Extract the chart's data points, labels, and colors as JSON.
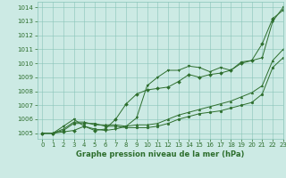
{
  "title": "Graphe pression niveau de la mer (hPa)",
  "background_color": "#cceae4",
  "grid_color": "#88c4b8",
  "line_color": "#2d6e2d",
  "xlim": [
    -0.5,
    23
  ],
  "ylim": [
    1004.6,
    1014.4
  ],
  "yticks": [
    1005,
    1006,
    1007,
    1008,
    1009,
    1010,
    1011,
    1012,
    1013,
    1014
  ],
  "xticks": [
    0,
    1,
    2,
    3,
    4,
    5,
    6,
    7,
    8,
    9,
    10,
    11,
    12,
    13,
    14,
    15,
    16,
    17,
    18,
    19,
    20,
    21,
    22,
    23
  ],
  "series": [
    [
      1005.0,
      1005.0,
      1005.1,
      1005.2,
      1005.5,
      1005.2,
      1005.3,
      1006.0,
      1007.1,
      1007.8,
      1008.1,
      1008.2,
      1008.3,
      1008.7,
      1009.2,
      1009.0,
      1009.2,
      1009.3,
      1009.5,
      1010.0,
      1010.2,
      1011.4,
      1013.2,
      1013.8
    ],
    [
      1005.0,
      1005.0,
      1005.2,
      1005.7,
      1005.7,
      1005.7,
      1005.5,
      1005.5,
      1005.4,
      1005.4,
      1005.4,
      1005.5,
      1005.7,
      1006.0,
      1006.2,
      1006.4,
      1006.5,
      1006.6,
      1006.8,
      1007.0,
      1007.2,
      1007.8,
      1009.7,
      1010.4
    ],
    [
      1005.0,
      1005.0,
      1005.3,
      1005.8,
      1005.8,
      1005.6,
      1005.6,
      1005.6,
      1005.5,
      1005.6,
      1005.6,
      1005.7,
      1006.0,
      1006.3,
      1006.5,
      1006.7,
      1006.9,
      1007.1,
      1007.3,
      1007.6,
      1007.9,
      1008.4,
      1010.2,
      1011.0
    ],
    [
      1005.0,
      1005.0,
      1005.5,
      1006.0,
      1005.5,
      1005.3,
      1005.2,
      1005.3,
      1005.5,
      1006.1,
      1008.4,
      1009.0,
      1009.5,
      1009.5,
      1009.8,
      1009.7,
      1009.4,
      1009.7,
      1009.5,
      1010.1,
      1010.2,
      1010.4,
      1013.0,
      1014.0
    ]
  ],
  "markers": [
    "D",
    "o",
    "^",
    "v"
  ],
  "markersizes": [
    2.0,
    2.0,
    2.0,
    2.0
  ],
  "linewidth": 0.7,
  "tick_fontsize": 5,
  "xlabel_fontsize": 6,
  "ytick_fontsize": 5
}
